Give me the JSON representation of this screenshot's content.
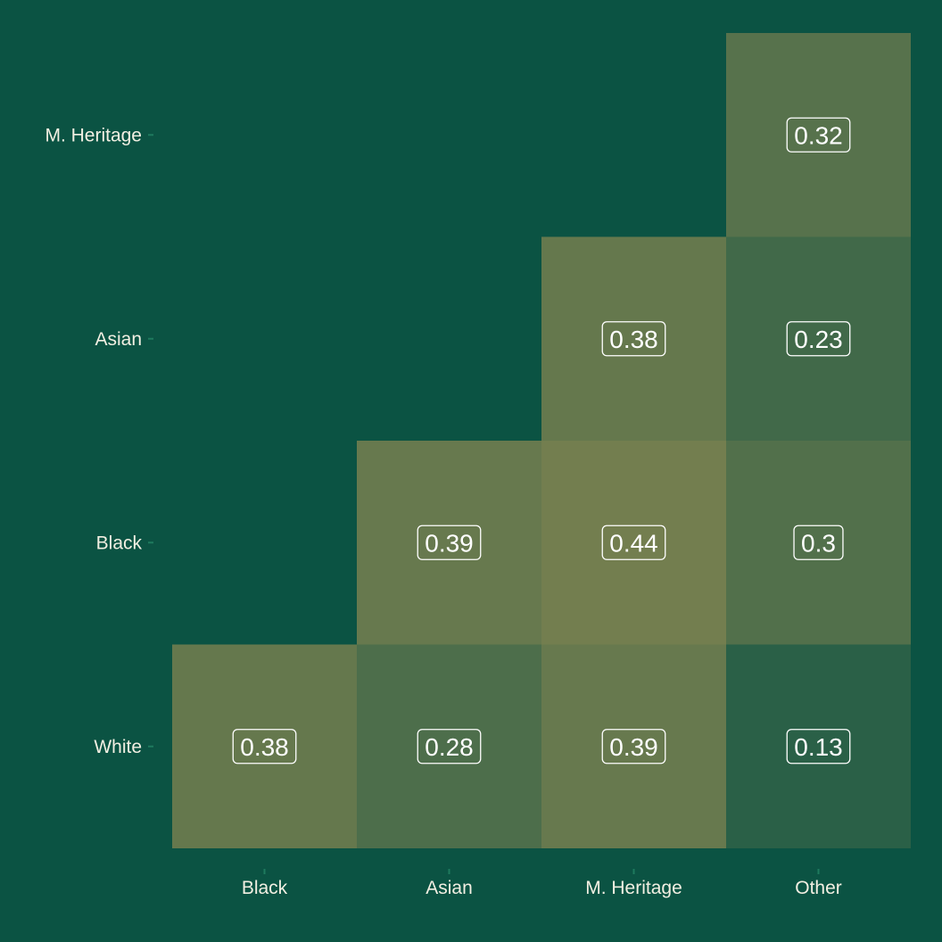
{
  "chart_data": {
    "type": "heatmap",
    "title": "",
    "xlabel": "",
    "ylabel": "",
    "x_categories": [
      "Black",
      "Asian",
      "M. Heritage",
      "Other"
    ],
    "y_categories": [
      "White",
      "Black",
      "Asian",
      "M. Heritage"
    ],
    "cells": [
      {
        "x": "Black",
        "y": "White",
        "value": 0.38,
        "label": "0.38"
      },
      {
        "x": "Asian",
        "y": "White",
        "value": 0.28,
        "label": "0.28"
      },
      {
        "x": "M. Heritage",
        "y": "White",
        "value": 0.39,
        "label": "0.39"
      },
      {
        "x": "Other",
        "y": "White",
        "value": 0.13,
        "label": "0.13"
      },
      {
        "x": "Asian",
        "y": "Black",
        "value": 0.39,
        "label": "0.39"
      },
      {
        "x": "M. Heritage",
        "y": "Black",
        "value": 0.44,
        "label": "0.44"
      },
      {
        "x": "Other",
        "y": "Black",
        "value": 0.3,
        "label": "0.3"
      },
      {
        "x": "M. Heritage",
        "y": "Asian",
        "value": 0.38,
        "label": "0.38"
      },
      {
        "x": "Other",
        "y": "Asian",
        "value": 0.23,
        "label": "0.23"
      },
      {
        "x": "Other",
        "y": "M. Heritage",
        "value": 0.32,
        "label": "0.32"
      }
    ],
    "color_scale": {
      "low_color": "#0b5343",
      "high_color": "#737e4f",
      "domain": [
        0,
        0.44
      ]
    },
    "background": "#0b5343",
    "grid": false,
    "legend": "none"
  }
}
